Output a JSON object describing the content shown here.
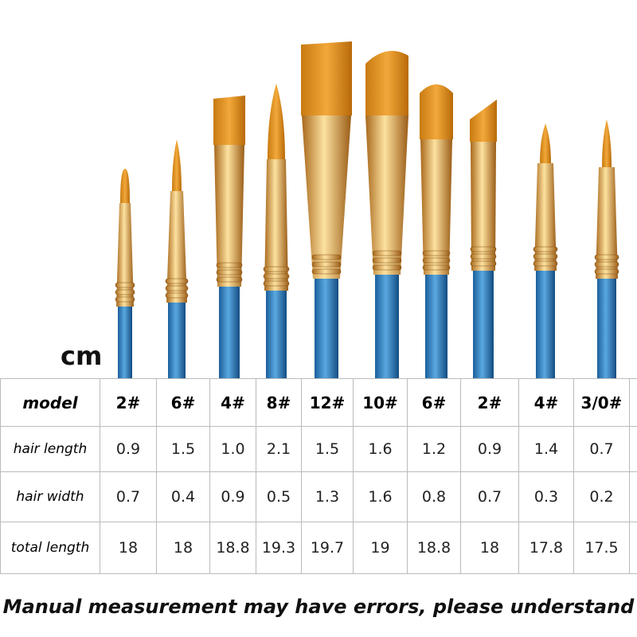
{
  "unit": "cm",
  "table": {
    "header": [
      "model",
      "2#",
      "6#",
      "4#",
      "8#",
      "12#",
      "10#",
      "6#",
      "2#",
      "4#",
      "3/0#"
    ],
    "rows": [
      [
        "hair length",
        "0.9",
        "1.5",
        "1.0",
        "2.1",
        "1.5",
        "1.6",
        "1.2",
        "0.9",
        "1.4",
        "0.7"
      ],
      [
        "hair width",
        "0.7",
        "0.4",
        "0.9",
        "0.5",
        "1.3",
        "1.6",
        "0.8",
        "0.7",
        "0.3",
        "0.2"
      ],
      [
        "total length",
        "18",
        "18",
        "18.8",
        "19.3",
        "19.7",
        "19",
        "18.8",
        "18",
        "17.8",
        "17.5"
      ]
    ]
  },
  "caption": "Manual measurement may have errors, please understand"
}
